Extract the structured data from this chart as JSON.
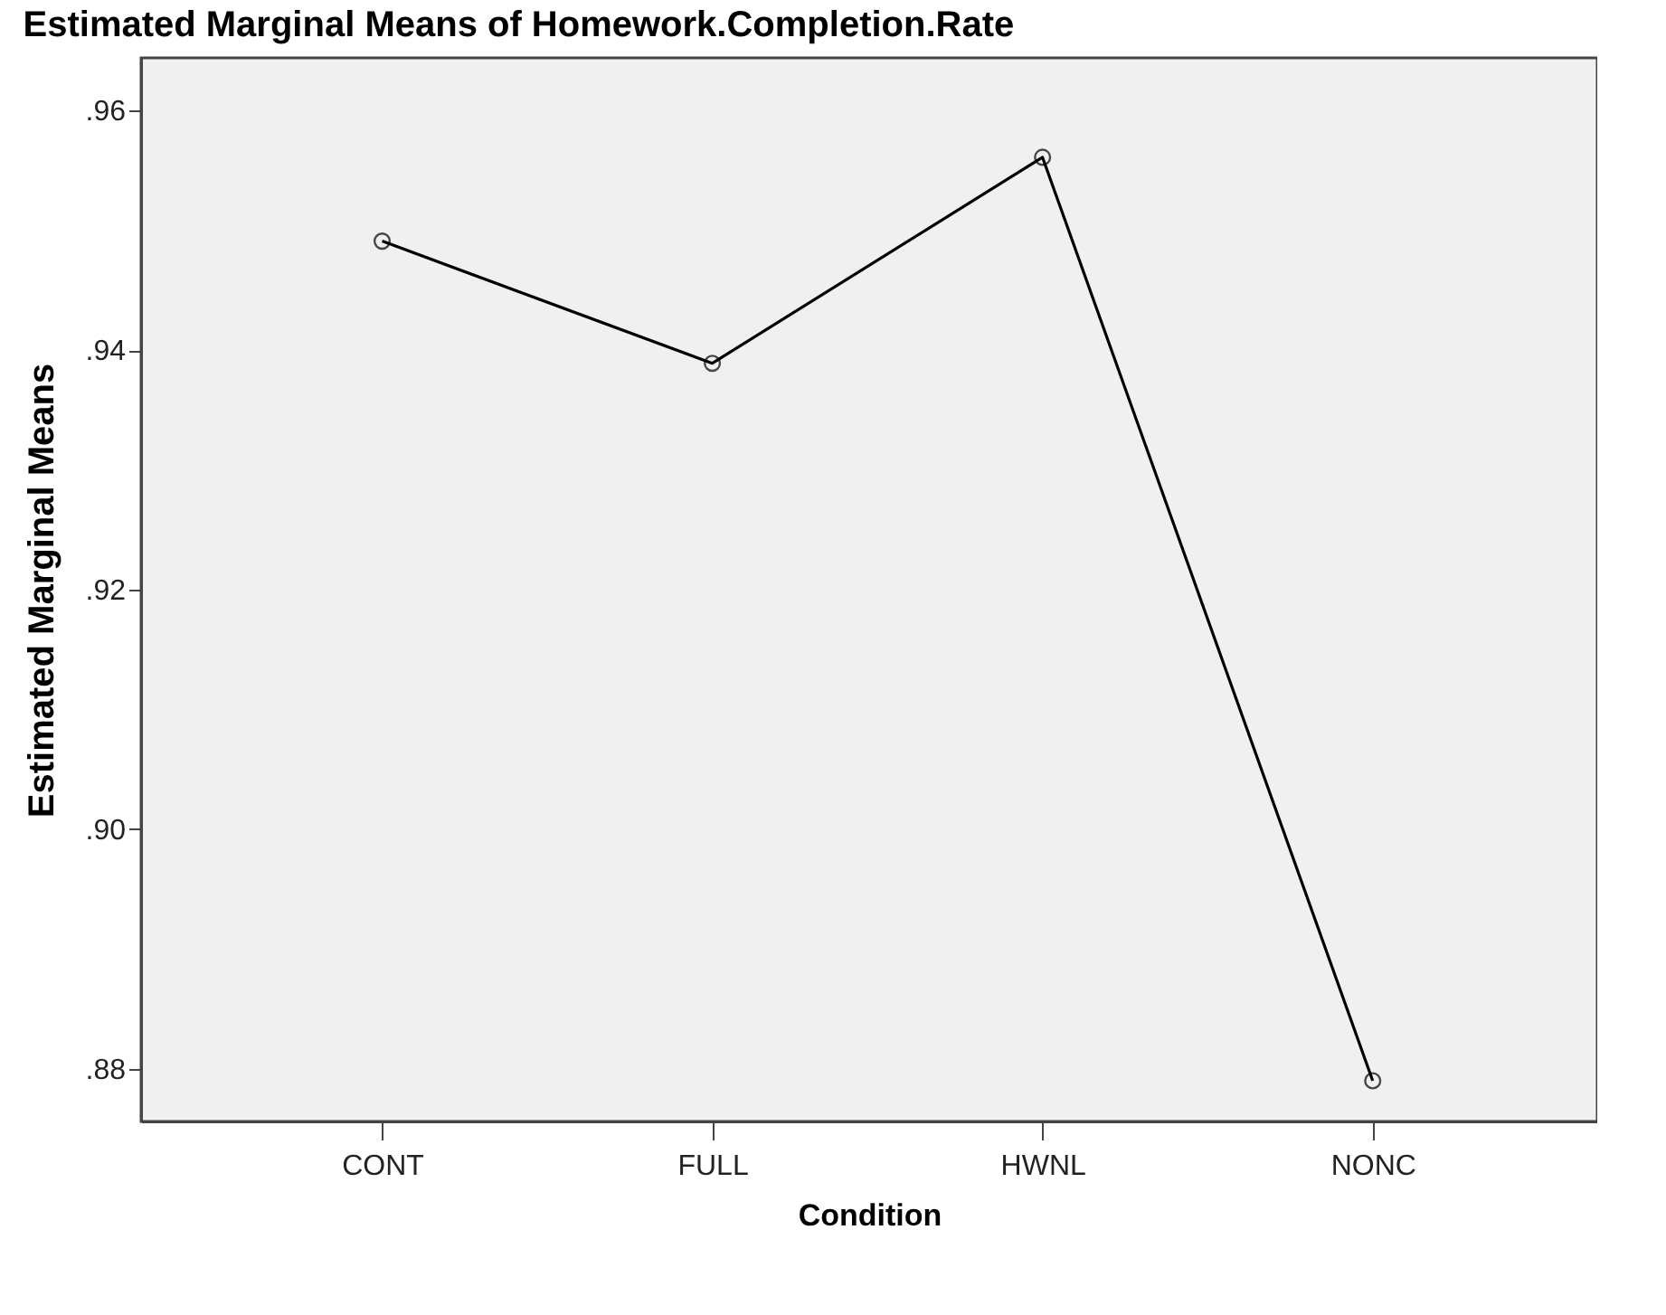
{
  "chart_data": {
    "type": "line",
    "title": "Estimated Marginal Means of Homework.Completion.Rate",
    "xlabel": "Condition",
    "ylabel": "Estimated Marginal Means",
    "categories": [
      "CONT",
      "FULL",
      "HWNL",
      "NONC"
    ],
    "series": [
      {
        "color": "#000000",
        "values": [
          0.9491,
          0.9389,
          0.9561,
          0.879
        ]
      }
    ],
    "ylim": [
      0.8756,
      0.9644
    ],
    "yticks": [
      {
        "value": 0.88,
        "label": ".88"
      },
      {
        "value": 0.9,
        "label": ".90"
      },
      {
        "value": 0.92,
        "label": ".92"
      },
      {
        "value": 0.94,
        "label": ".94"
      },
      {
        "value": 0.96,
        "label": ".96"
      }
    ],
    "marker": "circle",
    "grid": false,
    "legend": false
  }
}
